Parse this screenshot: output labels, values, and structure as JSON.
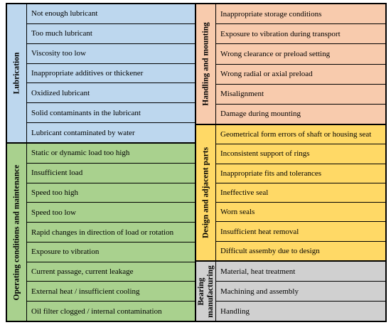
{
  "colors": {
    "lubrication": "#bdd7ee",
    "operating": "#a9d18e",
    "handling": "#f8cbad",
    "design": "#ffd966",
    "manufacturing": "#d0d0d0"
  },
  "lubrication": {
    "title": "Lubrication",
    "items": [
      "Not enough lubricant",
      "Too much lubricant",
      "Viscosity too low",
      "Inappropriate additives or thickener",
      "Oxidized lubricant",
      "Solid contaminants in the lubricant",
      "Lubricant contaminated by water"
    ]
  },
  "operating": {
    "title": "Operating conditions and maintenance",
    "items": [
      "Static or dynamic load too high",
      "Insufficient load",
      "Speed too high",
      "Speed too low",
      "Rapid changes in direction of load or rotation",
      "Exposure to vibration",
      "Current passage, current leakage",
      "External heat / insufficient cooling",
      "Oil filter clogged / internal contamination"
    ]
  },
  "handling": {
    "title": "Handling and mounting",
    "items": [
      "Inappropriate storage conditions",
      "Exposure to vibration during transport",
      "Wrong clearance or preload setting",
      "Wrong radial or axial preload",
      "Misalignment",
      "Damage during mounting"
    ]
  },
  "design": {
    "title": "Design and adjacent parts",
    "items": [
      "Geometrical form errors of shaft or housing seat",
      "Inconsistent support of rings",
      "Inappropriate fits and tolerances",
      "Ineffective seal",
      "Worn seals",
      "Insufficient heat removal",
      "Difficult assemby due to design"
    ]
  },
  "manufacturing": {
    "title_line1": "Bearing",
    "title_line2": "manufacturing",
    "items": [
      "Material, heat treatment",
      "Machining and assembly",
      "Handling"
    ]
  }
}
